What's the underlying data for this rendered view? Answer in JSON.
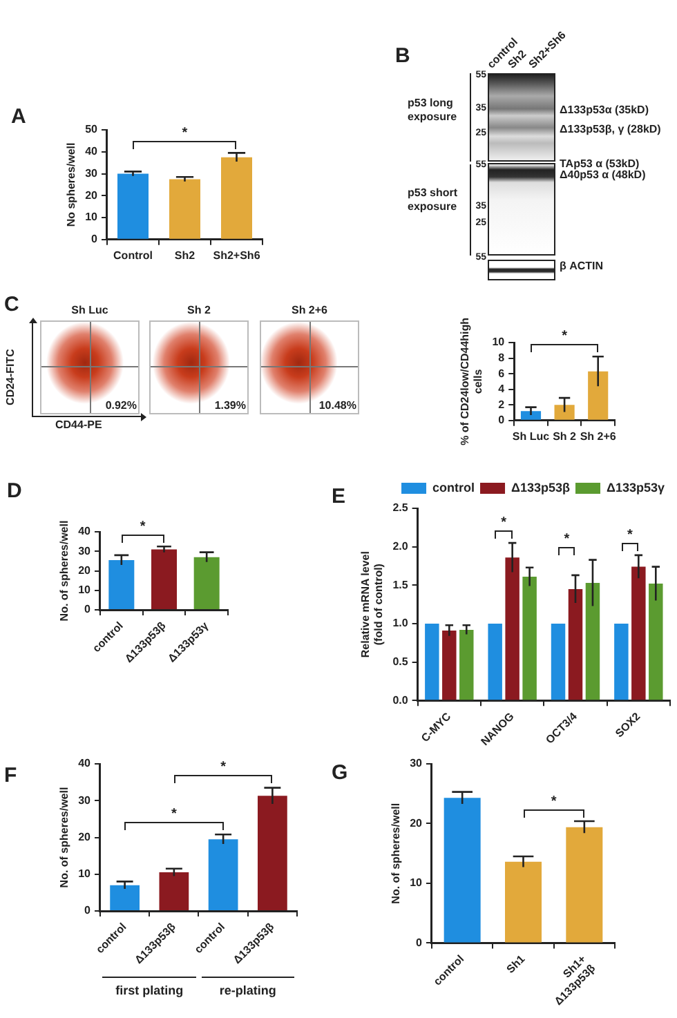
{
  "chart_data": [
    {
      "type": "bar",
      "title": "A",
      "ylabel": "No spheres/well",
      "categories": [
        "Control",
        "Sh2",
        "Sh2+Sh6"
      ],
      "values": [
        30,
        27.5,
        37.5
      ],
      "errors": [
        1,
        1,
        2
      ],
      "colors": [
        "#1f8ee0",
        "#e2a93b",
        "#e2a93b"
      ],
      "ylim": [
        0,
        50
      ],
      "yticks": [
        0,
        10,
        20,
        30,
        40,
        50
      ],
      "annotations": [
        "*"
      ]
    },
    {
      "type": "other",
      "title": "B",
      "categories": [
        "control",
        "Sh2",
        "Sh2+Sh6"
      ],
      "annotations": [
        "p53 long exposure",
        "p53 short exposure",
        "55",
        "35",
        "25",
        "55",
        "35",
        "25",
        "55",
        "Δ133p53α (35kD)",
        "Δ133p53β, γ (28kD)",
        "TAp53 α (53kD)",
        "Δ40p53 α (48kD)",
        "β ACTIN"
      ]
    },
    {
      "type": "other",
      "title": "C",
      "categories": [
        "Sh Luc",
        "Sh 2",
        "Sh 2+6"
      ],
      "xlabel": "CD44-PE",
      "ylabel": "CD24-FITC",
      "annotations": [
        "0.92%",
        "1.39%",
        "10.48%"
      ]
    },
    {
      "type": "bar",
      "ylabel": "% of CD24low/CD44high cells",
      "categories": [
        "Sh Luc",
        "Sh 2",
        "Sh 2+6"
      ],
      "values": [
        1.2,
        2.0,
        6.3
      ],
      "errors": [
        0.5,
        0.9,
        1.9
      ],
      "colors": [
        "#1f8ee0",
        "#e2a93b",
        "#e2a93b"
      ],
      "ylim": [
        0,
        10
      ],
      "yticks": [
        0,
        2,
        4,
        6,
        8,
        10
      ],
      "annotations": [
        "*"
      ]
    },
    {
      "type": "bar",
      "title": "D",
      "ylabel": "No. of spheres/well",
      "categories": [
        "control",
        "Δ133p53β",
        "Δ133p53γ"
      ],
      "values": [
        25.5,
        31,
        27
      ],
      "errors": [
        2.5,
        1.5,
        2.5
      ],
      "colors": [
        "#1f8ee0",
        "#8b1a20",
        "#5b9b30"
      ],
      "ylim": [
        0,
        40
      ],
      "yticks": [
        0,
        10,
        20,
        30,
        40
      ],
      "annotations": [
        "*"
      ]
    },
    {
      "type": "bar",
      "title": "E",
      "ylabel": "Relative mRNA level (fold of control)",
      "categories": [
        "C-MYC",
        "NANOG",
        "OCT3/4",
        "SOX2"
      ],
      "series": [
        {
          "name": "control",
          "color": "#1f8ee0",
          "values": [
            1,
            1,
            1,
            1
          ]
        },
        {
          "name": "Δ133p53β",
          "color": "#8b1a20",
          "values": [
            0.91,
            1.86,
            1.45,
            1.74
          ],
          "errors": [
            0.07,
            0.19,
            0.18,
            0.15
          ]
        },
        {
          "name": "Δ133p53γ",
          "color": "#5b9b30",
          "values": [
            0.92,
            1.61,
            1.53,
            1.52
          ],
          "errors": [
            0.06,
            0.12,
            0.3,
            0.22
          ]
        }
      ],
      "ylim": [
        0,
        2.5
      ],
      "yticks": [
        {
          "value": 0,
          "label": "0.0"
        },
        0.5,
        {
          "value": 1,
          "label": "1.0"
        },
        1.5,
        {
          "value": 2,
          "label": "2.0"
        },
        2.5
      ],
      "legend": "top right",
      "annotations": [
        "*",
        "*",
        "*"
      ]
    },
    {
      "type": "bar",
      "title": "F",
      "ylabel": "No. of spheres/well",
      "categories": [
        "control",
        "Δ133p53β",
        "control",
        "Δ133p53β"
      ],
      "values": [
        7,
        10.5,
        19.5,
        31.3
      ],
      "errors": [
        1,
        1,
        1.3,
        2.2
      ],
      "colors": [
        "#1f8ee0",
        "#8b1a20",
        "#1f8ee0",
        "#8b1a20"
      ],
      "ylim": [
        0,
        40
      ],
      "yticks": [
        0,
        10,
        20,
        30,
        40
      ],
      "annotations": [
        "*",
        "*",
        "first plating",
        "re-plating"
      ]
    },
    {
      "type": "bar",
      "title": "G",
      "ylabel": "No. of spheres/well",
      "categories": [
        "control",
        "Sh1",
        "Sh1+ Δ133p53β"
      ],
      "values": [
        24.3,
        13.6,
        19.4
      ],
      "errors": [
        1,
        0.9,
        1
      ],
      "colors": [
        "#1f8ee0",
        "#e2a93b",
        "#e2a93b"
      ],
      "ylim": [
        0,
        30
      ],
      "yticks": [
        0,
        10,
        20,
        30
      ],
      "annotations": [
        "*"
      ]
    }
  ]
}
